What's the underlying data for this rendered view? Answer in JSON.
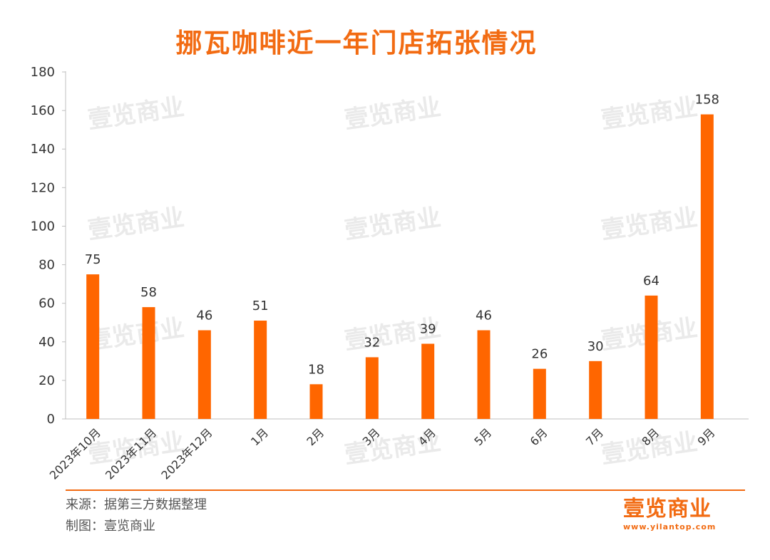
{
  "title": "挪瓦咖啡近一年门店拓张情况",
  "chart_data": {
    "type": "bar",
    "categories": [
      "2023年10月",
      "2023年11月",
      "2023年12月",
      "1月",
      "2月",
      "3月",
      "4月",
      "5月",
      "6月",
      "7月",
      "8月",
      "9月"
    ],
    "values": [
      75,
      58,
      46,
      51,
      18,
      32,
      39,
      46,
      26,
      30,
      64,
      158
    ],
    "ylim": [
      0,
      180
    ],
    "yticks": [
      0,
      20,
      40,
      60,
      80,
      100,
      120,
      140,
      160,
      180
    ],
    "bar_color": "#FF6600",
    "grid": false,
    "data_labels": true
  },
  "footer": {
    "source": "来源：据第三方数据整理",
    "made_by": "制图：壹览商业"
  },
  "brand": {
    "name": "壹览商业",
    "url": "www.yilantop.com",
    "watermark": "壹览商业"
  },
  "colors": {
    "accent": "#F26B12",
    "bar": "#FF6600"
  }
}
